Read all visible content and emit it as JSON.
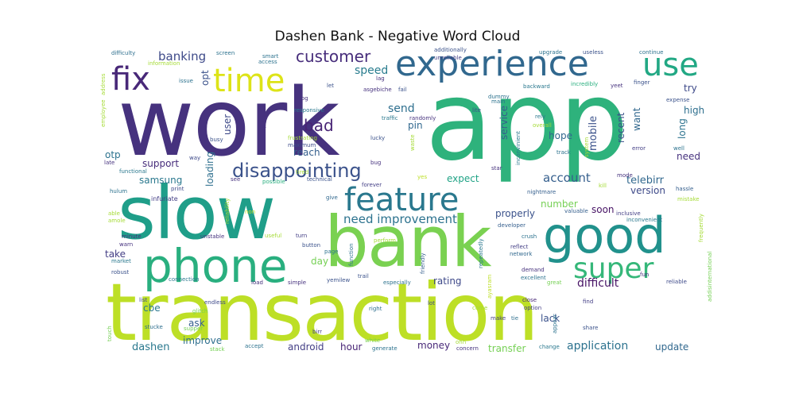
{
  "chart_data": {
    "type": "wordcloud",
    "title": "Dashen Bank - Negative Word Cloud",
    "background": "#ffffff",
    "colormap": "viridis",
    "words": [
      {
        "text": "app",
        "weight": 100,
        "color": "#2eb27c"
      },
      {
        "text": "work",
        "weight": 96,
        "color": "#46327e"
      },
      {
        "text": "transaction",
        "weight": 90,
        "color": "#bddf26"
      },
      {
        "text": "slow",
        "weight": 85,
        "color": "#1f9e89"
      },
      {
        "text": "bank",
        "weight": 82,
        "color": "#7ad151"
      },
      {
        "text": "good",
        "weight": 62,
        "color": "#21918c"
      },
      {
        "text": "phone",
        "weight": 58,
        "color": "#29af7f"
      },
      {
        "text": "experience",
        "weight": 48,
        "color": "#31688e"
      },
      {
        "text": "feature",
        "weight": 42,
        "color": "#2a788e"
      },
      {
        "text": "super",
        "weight": 40,
        "color": "#35b779"
      },
      {
        "text": "fix",
        "weight": 40,
        "color": "#482878"
      },
      {
        "text": "time",
        "weight": 40,
        "color": "#dde318"
      },
      {
        "text": "use",
        "weight": 38,
        "color": "#22a884"
      },
      {
        "text": "disappointing",
        "weight": 24,
        "color": "#3b528b"
      },
      {
        "text": "customer",
        "weight": 20,
        "color": "#472d7b"
      },
      {
        "text": "bad",
        "weight": 20,
        "color": "#482475"
      },
      {
        "text": "need improvement",
        "weight": 15,
        "color": "#2c728e"
      },
      {
        "text": "banking",
        "weight": 15,
        "color": "#3e4a89"
      },
      {
        "text": "account",
        "weight": 15,
        "color": "#355f8d"
      },
      {
        "text": "difficult",
        "weight": 14,
        "color": "#471365"
      },
      {
        "text": "application",
        "weight": 14,
        "color": "#2c728e"
      },
      {
        "text": "speed",
        "weight": 14,
        "color": "#287c8e"
      },
      {
        "text": "send",
        "weight": 14,
        "color": "#2e6f8e"
      },
      {
        "text": "mobile",
        "weight": 13,
        "color": "#3b528b"
      },
      {
        "text": "telebirr",
        "weight": 13,
        "color": "#31688e"
      },
      {
        "text": "dashen",
        "weight": 13,
        "color": "#2a788e"
      },
      {
        "text": "transfer",
        "weight": 12,
        "color": "#75d054"
      },
      {
        "text": "update",
        "weight": 12,
        "color": "#31688e"
      },
      {
        "text": "rating",
        "weight": 12,
        "color": "#3e4989"
      },
      {
        "text": "money",
        "weight": 12,
        "color": "#482878"
      },
      {
        "text": "properly",
        "weight": 12,
        "color": "#3b528b"
      },
      {
        "text": "expect",
        "weight": 12,
        "color": "#20a386"
      },
      {
        "text": "samsung",
        "weight": 12,
        "color": "#2a788e"
      },
      {
        "text": "support",
        "weight": 12,
        "color": "#472d7b"
      },
      {
        "text": "version",
        "weight": 12,
        "color": "#3e4a89"
      },
      {
        "text": "improve",
        "weight": 12,
        "color": "#2e6f8e"
      },
      {
        "text": "android",
        "weight": 12,
        "color": "#433e85"
      },
      {
        "text": "hour",
        "weight": 12,
        "color": "#482475"
      },
      {
        "text": "lack",
        "weight": 12,
        "color": "#3b528b"
      },
      {
        "text": "soon",
        "weight": 12,
        "color": "#471365"
      },
      {
        "text": "hope",
        "weight": 12,
        "color": "#31688e"
      },
      {
        "text": "high",
        "weight": 12,
        "color": "#2e6f8e"
      },
      {
        "text": "try",
        "weight": 12,
        "color": "#3e4a89"
      },
      {
        "text": "need",
        "weight": 12,
        "color": "#46327e"
      },
      {
        "text": "long",
        "weight": 12,
        "color": "#2c728e"
      },
      {
        "text": "want",
        "weight": 12,
        "color": "#31688e"
      },
      {
        "text": "recent",
        "weight": 12,
        "color": "#3b528b"
      },
      {
        "text": "reach",
        "weight": 12,
        "color": "#355f8d"
      },
      {
        "text": "pin",
        "weight": 12,
        "color": "#31688e"
      },
      {
        "text": "take",
        "weight": 12,
        "color": "#433e85"
      },
      {
        "text": "day",
        "weight": 12,
        "color": "#75d054"
      },
      {
        "text": "ask",
        "weight": 12,
        "color": "#355f8d"
      },
      {
        "text": "cbe",
        "weight": 12,
        "color": "#2a788e"
      },
      {
        "text": "otp",
        "weight": 12,
        "color": "#2c728e"
      },
      {
        "text": "number",
        "weight": 12,
        "color": "#75d054"
      },
      {
        "text": "user",
        "weight": 12,
        "color": "#3e4a89"
      },
      {
        "text": "loading",
        "weight": 12,
        "color": "#2e6f8e"
      },
      {
        "text": "service",
        "weight": 12,
        "color": "#355f8d"
      },
      {
        "text": "opt",
        "weight": 12,
        "color": "#3b528b"
      },
      {
        "text": "infuriate",
        "weight": 8,
        "color": "#433e85"
      },
      {
        "text": "functional",
        "weight": 7,
        "color": "#2a788e"
      },
      {
        "text": "hulum",
        "weight": 7,
        "color": "#2c728e"
      },
      {
        "text": "print",
        "weight": 7,
        "color": "#3e4a89"
      },
      {
        "text": "see",
        "weight": 7,
        "color": "#46327e"
      },
      {
        "text": "possible",
        "weight": 7,
        "color": "#29af7f"
      },
      {
        "text": "technical",
        "weight": 7,
        "color": "#3b528b"
      },
      {
        "text": "give",
        "weight": 7,
        "color": "#31688e"
      },
      {
        "text": "tired",
        "weight": 7,
        "color": "#a5db36"
      },
      {
        "text": "forever",
        "weight": 7,
        "color": "#433e85"
      },
      {
        "text": "yes",
        "weight": 7,
        "color": "#bddf26"
      },
      {
        "text": "star",
        "weight": 7,
        "color": "#46327e"
      },
      {
        "text": "kill",
        "weight": 7,
        "color": "#a5db36"
      },
      {
        "text": "nightmare",
        "weight": 7,
        "color": "#355f8d"
      },
      {
        "text": "valuable",
        "weight": 7,
        "color": "#355f8d"
      },
      {
        "text": "inclusive",
        "weight": 7,
        "color": "#433e85"
      },
      {
        "text": "mode",
        "weight": 7,
        "color": "#46327e"
      },
      {
        "text": "error",
        "weight": 7,
        "color": "#433e85"
      },
      {
        "text": "well",
        "weight": 7,
        "color": "#2c728e"
      },
      {
        "text": "hassle",
        "weight": 7,
        "color": "#355f8d"
      },
      {
        "text": "mistake",
        "weight": 7,
        "color": "#a5db36"
      },
      {
        "text": "inconvenient",
        "weight": 7,
        "color": "#2a788e"
      },
      {
        "text": "frequently",
        "weight": 7,
        "color": "#a5db36"
      },
      {
        "text": "fun",
        "weight": 7,
        "color": "#46327e"
      },
      {
        "text": "reliable",
        "weight": 7,
        "color": "#3e4a89"
      },
      {
        "text": "addisinternational",
        "weight": 7,
        "color": "#75d054"
      },
      {
        "text": "excellent",
        "weight": 7,
        "color": "#2c728e"
      },
      {
        "text": "great",
        "weight": 7,
        "color": "#75d054"
      },
      {
        "text": "demand",
        "weight": 7,
        "color": "#46327e"
      },
      {
        "text": "find",
        "weight": 7,
        "color": "#433e85"
      },
      {
        "text": "share",
        "weight": 7,
        "color": "#3b528b"
      },
      {
        "text": "change",
        "weight": 7,
        "color": "#2a788e"
      },
      {
        "text": "concern",
        "weight": 7,
        "color": "#46327e"
      },
      {
        "text": "generate",
        "weight": 7,
        "color": "#2c728e"
      },
      {
        "text": "white",
        "weight": 7,
        "color": "#7ad151"
      },
      {
        "text": "ohh",
        "weight": 7,
        "color": "#a5db36"
      },
      {
        "text": "option",
        "weight": 7,
        "color": "#433e85"
      },
      {
        "text": "close",
        "weight": 7,
        "color": "#482878"
      },
      {
        "text": "make",
        "weight": 7,
        "color": "#433e85"
      },
      {
        "text": "tie",
        "weight": 7,
        "color": "#2e6f8e"
      },
      {
        "text": "appear",
        "weight": 7,
        "color": "#2c728e"
      },
      {
        "text": "come",
        "weight": 7,
        "color": "#a5db36"
      },
      {
        "text": "lot",
        "weight": 7,
        "color": "#3e4a89"
      },
      {
        "text": "right",
        "weight": 7,
        "color": "#2e6f8e"
      },
      {
        "text": "receipt",
        "weight": 7,
        "color": "#bddf26"
      },
      {
        "text": "birr",
        "weight": 7,
        "color": "#433e85"
      },
      {
        "text": "accept",
        "weight": 7,
        "color": "#2c728e"
      },
      {
        "text": "stack",
        "weight": 7,
        "color": "#75d054"
      },
      {
        "text": "supper",
        "weight": 7,
        "color": "#75d054"
      },
      {
        "text": "stucke",
        "weight": 7,
        "color": "#2e6f8e"
      },
      {
        "text": "touch",
        "weight": 7,
        "color": "#75d054"
      },
      {
        "text": "glitch",
        "weight": 7,
        "color": "#75d054"
      },
      {
        "text": "endless",
        "weight": 7,
        "color": "#3e4a89"
      },
      {
        "text": "list",
        "weight": 7,
        "color": "#3e4a89"
      },
      {
        "text": "robust",
        "weight": 7,
        "color": "#3b528b"
      },
      {
        "text": "market",
        "weight": 7,
        "color": "#2a788e"
      },
      {
        "text": "warn",
        "weight": 7,
        "color": "#46327e"
      },
      {
        "text": "minute",
        "weight": 7,
        "color": "#46327e"
      },
      {
        "text": "unstable",
        "weight": 7,
        "color": "#46327e"
      },
      {
        "text": "useful",
        "weight": 7,
        "color": "#a5db36"
      },
      {
        "text": "turn",
        "weight": 7,
        "color": "#433e85"
      },
      {
        "text": "button",
        "weight": 7,
        "color": "#3b528b"
      },
      {
        "text": "page",
        "weight": 7,
        "color": "#2c728e"
      },
      {
        "text": "yemilew",
        "weight": 7,
        "color": "#3b528b"
      },
      {
        "text": "simple",
        "weight": 7,
        "color": "#46327e"
      },
      {
        "text": "load",
        "weight": 7,
        "color": "#46327e"
      },
      {
        "text": "connection",
        "weight": 7,
        "color": "#2a788e"
      },
      {
        "text": "trail",
        "weight": 7,
        "color": "#3b528b"
      },
      {
        "text": "especially",
        "weight": 7,
        "color": "#2c728e"
      },
      {
        "text": "perform",
        "weight": 7,
        "color": "#a5db36"
      },
      {
        "text": "function",
        "weight": 7,
        "color": "#2c728e"
      },
      {
        "text": "friendly",
        "weight": 7,
        "color": "#355f8d"
      },
      {
        "text": "repeatedly",
        "weight": 7,
        "color": "#2a788e"
      },
      {
        "text": "developer",
        "weight": 7,
        "color": "#355f8d"
      },
      {
        "text": "crush",
        "weight": 7,
        "color": "#2c728e"
      },
      {
        "text": "reflect",
        "weight": 7,
        "color": "#433e85"
      },
      {
        "text": "network",
        "weight": 7,
        "color": "#31688e"
      },
      {
        "text": "ayasram",
        "weight": 7,
        "color": "#bddf26"
      },
      {
        "text": "non",
        "weight": 7,
        "color": "#bddf26"
      },
      {
        "text": "reliability",
        "weight": 7,
        "color": "#a5db36"
      },
      {
        "text": "able",
        "weight": 7,
        "color": "#a5db36"
      },
      {
        "text": "amole",
        "weight": 7,
        "color": "#a5db36"
      },
      {
        "text": "late",
        "weight": 7,
        "color": "#46327e"
      },
      {
        "text": "way",
        "weight": 7,
        "color": "#3e4a89"
      },
      {
        "text": "busy",
        "weight": 7,
        "color": "#3b528b"
      },
      {
        "text": "frustrating",
        "weight": 7,
        "color": "#a5db36"
      },
      {
        "text": "maximum",
        "weight": 7,
        "color": "#3e4a89"
      },
      {
        "text": "response",
        "weight": 7,
        "color": "#46327e"
      },
      {
        "text": "lucky",
        "weight": 7,
        "color": "#3b528b"
      },
      {
        "text": "waste",
        "weight": 7,
        "color": "#a5db36"
      },
      {
        "text": "bug",
        "weight": 7,
        "color": "#46327e"
      },
      {
        "text": "traffic",
        "weight": 7,
        "color": "#2a788e"
      },
      {
        "text": "randomly",
        "weight": 7,
        "color": "#46327e"
      },
      {
        "text": "responsive",
        "weight": 7,
        "color": "#2a788e"
      },
      {
        "text": "log",
        "weight": 7,
        "color": "#46327e"
      },
      {
        "text": "let",
        "weight": 7,
        "color": "#3b528b"
      },
      {
        "text": "lag",
        "weight": 7,
        "color": "#46327e"
      },
      {
        "text": "asgebiche",
        "weight": 7,
        "color": "#46327e"
      },
      {
        "text": "fail",
        "weight": 7,
        "color": "#3b528b"
      },
      {
        "text": "dummy",
        "weight": 7,
        "color": "#2c728e"
      },
      {
        "text": "lite",
        "weight": 7,
        "color": "#3b528b"
      },
      {
        "text": "main",
        "weight": 7,
        "color": "#2c728e"
      },
      {
        "text": "backward",
        "weight": 7,
        "color": "#2a788e"
      },
      {
        "text": "incredibly",
        "weight": 7,
        "color": "#29af7f"
      },
      {
        "text": "yeet",
        "weight": 7,
        "color": "#46327e"
      },
      {
        "text": "finger",
        "weight": 7,
        "color": "#3b528b"
      },
      {
        "text": "expense",
        "weight": 7,
        "color": "#3b528b"
      },
      {
        "text": "rely",
        "weight": 7,
        "color": "#2a788e"
      },
      {
        "text": "overall",
        "weight": 7,
        "color": "#a5db36"
      },
      {
        "text": "inconvinient",
        "weight": 7,
        "color": "#2a788e"
      },
      {
        "text": "track",
        "weight": 7,
        "color": "#2c728e"
      },
      {
        "text": "system",
        "weight": 7,
        "color": "#a5db36"
      },
      {
        "text": "difficulty",
        "weight": 7,
        "color": "#2e6f8e"
      },
      {
        "text": "screen",
        "weight": 7,
        "color": "#2c728e"
      },
      {
        "text": "smart",
        "weight": 7,
        "color": "#2c728e"
      },
      {
        "text": "access",
        "weight": 7,
        "color": "#2c728e"
      },
      {
        "text": "additionally",
        "weight": 7,
        "color": "#3b528b"
      },
      {
        "text": "unreliable",
        "weight": 7,
        "color": "#433e85"
      },
      {
        "text": "upgrade",
        "weight": 7,
        "color": "#2c728e"
      },
      {
        "text": "useless",
        "weight": 7,
        "color": "#3b528b"
      },
      {
        "text": "continue",
        "weight": 7,
        "color": "#2c728e"
      },
      {
        "text": "information",
        "weight": 7,
        "color": "#a5db36"
      },
      {
        "text": "issue",
        "weight": 7,
        "color": "#2c728e"
      },
      {
        "text": "employee",
        "weight": 7,
        "color": "#a5db36"
      },
      {
        "text": "address",
        "weight": 7,
        "color": "#a5db36"
      }
    ]
  }
}
